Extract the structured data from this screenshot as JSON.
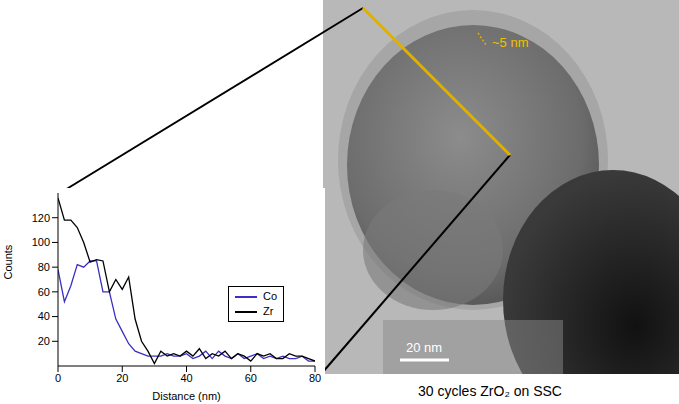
{
  "chart_data": {
    "type": "line",
    "x_label": "Distance (nm)",
    "y_label": "Counts",
    "x": [
      0,
      2,
      4,
      6,
      8,
      10,
      12,
      14,
      16,
      18,
      20,
      22,
      24,
      26,
      28,
      30,
      32,
      34,
      36,
      38,
      40,
      42,
      44,
      46,
      48,
      50,
      52,
      54,
      56,
      58,
      60,
      62,
      64,
      66,
      68,
      70,
      72,
      74,
      76,
      78,
      80
    ],
    "series": [
      {
        "name": "Co",
        "color": "#3a2fc4",
        "values": [
          78,
          52,
          65,
          82,
          80,
          85,
          85,
          60,
          60,
          38,
          28,
          18,
          12,
          10,
          8,
          8,
          8,
          10,
          8,
          8,
          10,
          6,
          8,
          12,
          6,
          12,
          8,
          6,
          10,
          6,
          8,
          10,
          6,
          8,
          6,
          8,
          6,
          6,
          8,
          4,
          4
        ]
      },
      {
        "name": "Zr",
        "color": "#000000",
        "values": [
          136,
          118,
          118,
          112,
          100,
          84,
          86,
          85,
          60,
          70,
          62,
          72,
          38,
          20,
          12,
          2,
          12,
          8,
          10,
          8,
          12,
          8,
          14,
          6,
          10,
          8,
          12,
          6,
          10,
          8,
          4,
          10,
          8,
          10,
          6,
          6,
          10,
          8,
          8,
          6,
          4
        ]
      }
    ],
    "xlim": [
      0,
      80
    ],
    "xticks": [
      0,
      20,
      40,
      60,
      80
    ],
    "ylim": [
      0,
      140
    ],
    "yticks": [
      20,
      40,
      60,
      80,
      100,
      120
    ],
    "legend": "right",
    "grid": false
  },
  "micrograph": {
    "annotation": "~5 nm",
    "scale_bar": "20 nm",
    "caption": "30 cycles ZrO₂ on SSC"
  }
}
